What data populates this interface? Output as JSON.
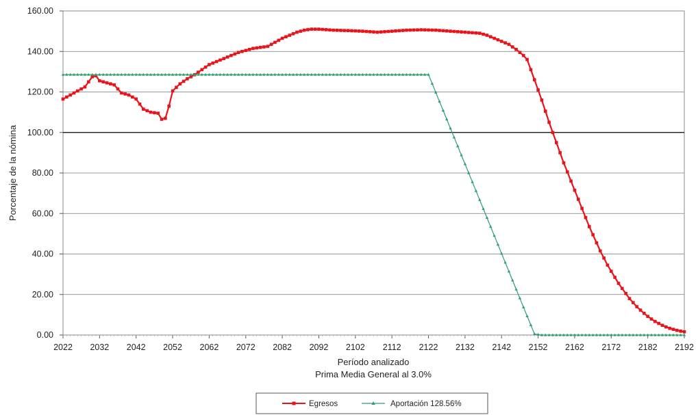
{
  "chart_data": {
    "type": "line",
    "title": "",
    "xlabel": "Período analizado",
    "subtitle": "Prima Media General al 3.0%",
    "ylabel": "Porcentaje de la nómina",
    "xlim": [
      2022,
      2192
    ],
    "ylim": [
      0,
      160
    ],
    "x_ticks": [
      "2022",
      "2032",
      "2042",
      "2052",
      "2062",
      "2072",
      "2082",
      "2092",
      "2102",
      "2112",
      "2122",
      "2132",
      "2142",
      "2152",
      "2162",
      "2172",
      "2182",
      "2192"
    ],
    "y_ticks": [
      "0.00",
      "20.00",
      "40.00",
      "60.00",
      "80.00",
      "100.00",
      "120.00",
      "140.00",
      "160.00"
    ],
    "grid": "horizontal",
    "legend_position": "bottom-center",
    "series": [
      {
        "name": "Egresos",
        "color": "#e8141b",
        "marker": "square",
        "points": [
          [
            2022,
            116.5
          ],
          [
            2024,
            118.5
          ],
          [
            2026,
            120.5
          ],
          [
            2028,
            122.5
          ],
          [
            2030,
            127.5
          ],
          [
            2031,
            128.0
          ],
          [
            2032,
            125.5
          ],
          [
            2034,
            124.5
          ],
          [
            2036,
            123.5
          ],
          [
            2038,
            119.5
          ],
          [
            2040,
            118.5
          ],
          [
            2042,
            116.5
          ],
          [
            2044,
            111.5
          ],
          [
            2046,
            110.0
          ],
          [
            2048,
            109.5
          ],
          [
            2049,
            106.5
          ],
          [
            2050,
            107.0
          ],
          [
            2051,
            113.0
          ],
          [
            2052,
            120.5
          ],
          [
            2054,
            124.0
          ],
          [
            2056,
            126.5
          ],
          [
            2058,
            128.5
          ],
          [
            2060,
            131.0
          ],
          [
            2062,
            133.5
          ],
          [
            2064,
            135.0
          ],
          [
            2066,
            136.5
          ],
          [
            2068,
            138.0
          ],
          [
            2070,
            139.5
          ],
          [
            2072,
            140.5
          ],
          [
            2074,
            141.5
          ],
          [
            2076,
            142.0
          ],
          [
            2078,
            142.5
          ],
          [
            2080,
            144.5
          ],
          [
            2082,
            146.5
          ],
          [
            2084,
            148.0
          ],
          [
            2086,
            149.5
          ],
          [
            2088,
            150.5
          ],
          [
            2090,
            151.0
          ],
          [
            2092,
            151.0
          ],
          [
            2096,
            150.5
          ],
          [
            2100,
            150.3
          ],
          [
            2104,
            150.0
          ],
          [
            2108,
            149.5
          ],
          [
            2112,
            150.0
          ],
          [
            2116,
            150.5
          ],
          [
            2120,
            150.7
          ],
          [
            2124,
            150.5
          ],
          [
            2128,
            150.0
          ],
          [
            2132,
            149.5
          ],
          [
            2136,
            149.0
          ],
          [
            2138,
            148.0
          ],
          [
            2140,
            146.5
          ],
          [
            2142,
            145.0
          ],
          [
            2144,
            143.5
          ],
          [
            2146,
            141.0
          ],
          [
            2148,
            138.0
          ],
          [
            2149,
            136.0
          ],
          [
            2150,
            131.0
          ],
          [
            2151,
            126.0
          ],
          [
            2152,
            121.0
          ],
          [
            2153,
            116.0
          ],
          [
            2154,
            110.5
          ],
          [
            2155,
            105.0
          ],
          [
            2156,
            100.0
          ],
          [
            2157,
            95.0
          ],
          [
            2158,
            90.0
          ],
          [
            2159,
            85.0
          ],
          [
            2160,
            80.5
          ],
          [
            2161,
            76.0
          ],
          [
            2162,
            71.5
          ],
          [
            2163,
            67.0
          ],
          [
            2164,
            62.5
          ],
          [
            2165,
            58.0
          ],
          [
            2166,
            53.5
          ],
          [
            2167,
            49.5
          ],
          [
            2168,
            45.5
          ],
          [
            2169,
            41.5
          ],
          [
            2170,
            38.0
          ],
          [
            2171,
            34.5
          ],
          [
            2172,
            31.5
          ],
          [
            2173,
            28.5
          ],
          [
            2174,
            25.5
          ],
          [
            2175,
            23.0
          ],
          [
            2176,
            20.5
          ],
          [
            2177,
            18.0
          ],
          [
            2178,
            16.0
          ],
          [
            2179,
            14.0
          ],
          [
            2180,
            12.3
          ],
          [
            2181,
            10.7
          ],
          [
            2182,
            9.2
          ],
          [
            2183,
            7.9
          ],
          [
            2184,
            6.7
          ],
          [
            2185,
            5.7
          ],
          [
            2186,
            4.8
          ],
          [
            2187,
            4.0
          ],
          [
            2188,
            3.3
          ],
          [
            2189,
            2.8
          ],
          [
            2190,
            2.3
          ],
          [
            2191,
            1.9
          ],
          [
            2192,
            1.6
          ]
        ]
      },
      {
        "name": "Aportación 128.56%",
        "color": "#2e9e6e",
        "marker": "triangle",
        "points": [
          [
            2022,
            128.56
          ],
          [
            2122,
            128.56
          ],
          [
            2151,
            0.5
          ],
          [
            2153,
            0.0
          ],
          [
            2192,
            0.0
          ]
        ]
      }
    ]
  }
}
